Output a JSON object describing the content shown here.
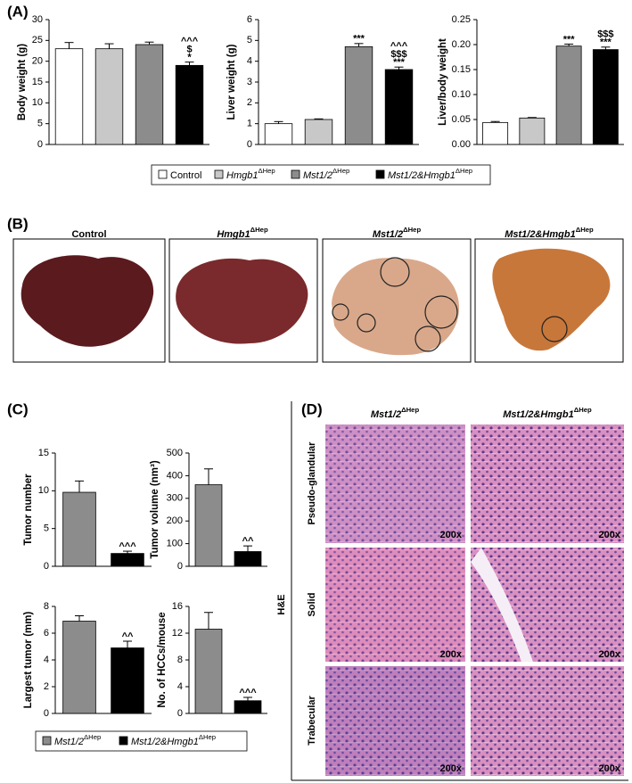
{
  "panel_labels": [
    "(A)",
    "(B)",
    "(C)",
    "(D)"
  ],
  "legend_a": [
    {
      "name": "Control",
      "sup": null,
      "color": "#ffffff"
    },
    {
      "name": "Hmgb1",
      "sup": "ΔHep",
      "color": "#c8c8c8"
    },
    {
      "name": "Mst1/2",
      "sup": "ΔHep",
      "color": "#8c8c8c"
    },
    {
      "name": "Mst1/2&Hmgb1",
      "sup": "ΔHep",
      "color": "#000000"
    }
  ],
  "legend_c": [
    {
      "name": "Mst1/2",
      "sup": "ΔHep",
      "color": "#8c8c8c"
    },
    {
      "name": "Mst1/2&Hmgb1",
      "sup": "ΔHep",
      "color": "#000000"
    }
  ],
  "photos": [
    {
      "name": "Control",
      "sup": null
    },
    {
      "name": "Hmgb1",
      "sup": "ΔHep"
    },
    {
      "name": "Mst1/2",
      "sup": "ΔHep"
    },
    {
      "name": "Mst1/2&Hmgb1",
      "sup": "ΔHep"
    }
  ],
  "histology": {
    "columns": [
      {
        "name": "Mst1/2",
        "sup": "ΔHep"
      },
      {
        "name": "Mst1/2&Hmgb1",
        "sup": "ΔHep"
      }
    ],
    "rows": [
      "Pseudo-glandular",
      "Solid",
      "Trabecular"
    ],
    "stain": "H&E",
    "magnifications": [
      [
        "200x",
        "200x"
      ],
      [
        "200x",
        "200x"
      ],
      [
        "200x",
        "200x"
      ]
    ]
  },
  "chart_data": [
    {
      "type": "bar",
      "ylabel": "Body weight (g)",
      "values": [
        23,
        23,
        24,
        19
      ],
      "errors": [
        1.5,
        1.2,
        0.6,
        0.8
      ],
      "colors": [
        "#ffffff",
        "#c8c8c8",
        "#8c8c8c",
        "#000000"
      ],
      "ylim": [
        0,
        30
      ],
      "yticks": [
        0,
        5,
        10,
        15,
        20,
        25,
        30
      ],
      "annotations": [
        null,
        null,
        null,
        [
          "^^^",
          "$",
          "*"
        ]
      ]
    },
    {
      "type": "bar",
      "ylabel": "Liver weight (g)",
      "values": [
        1.0,
        1.2,
        4.7,
        3.6
      ],
      "errors": [
        0.1,
        0.03,
        0.15,
        0.12
      ],
      "colors": [
        "#ffffff",
        "#c8c8c8",
        "#8c8c8c",
        "#000000"
      ],
      "ylim": [
        0,
        6
      ],
      "yticks": [
        0,
        1,
        2,
        3,
        4,
        5,
        6
      ],
      "annotations": [
        null,
        null,
        [
          "***"
        ],
        [
          "^^^",
          "$$$",
          "***"
        ]
      ]
    },
    {
      "type": "bar",
      "ylabel": "Liver/body weight",
      "values": [
        0.044,
        0.053,
        0.197,
        0.19
      ],
      "errors": [
        0.002,
        0.001,
        0.004,
        0.005
      ],
      "colors": [
        "#ffffff",
        "#c8c8c8",
        "#8c8c8c",
        "#000000"
      ],
      "ylim": [
        0,
        0.25
      ],
      "yticks": [
        {
          "value": 0,
          "label": "0.00"
        },
        0.05,
        {
          "value": 0.1,
          "label": "0.10"
        },
        0.15,
        {
          "value": 0.2,
          "label": "0.20"
        },
        0.25
      ],
      "annotations": [
        null,
        null,
        [
          "***"
        ],
        [
          "$$$",
          "***"
        ]
      ]
    },
    {
      "type": "bar",
      "ylabel": "Tumor number",
      "values": [
        9.8,
        1.7
      ],
      "errors": [
        1.5,
        0.3
      ],
      "colors": [
        "#8c8c8c",
        "#000000"
      ],
      "ylim": [
        0,
        15
      ],
      "yticks": [
        0,
        5,
        10,
        15
      ],
      "annotations": [
        null,
        [
          "^^^"
        ]
      ]
    },
    {
      "type": "bar",
      "ylabel": "Tumor volume (nm³)",
      "values": [
        360,
        65
      ],
      "errors": [
        70,
        25
      ],
      "colors": [
        "#8c8c8c",
        "#000000"
      ],
      "ylim": [
        0,
        500
      ],
      "yticks": [
        0,
        100,
        200,
        300,
        400,
        500
      ],
      "annotations": [
        null,
        [
          "^^"
        ]
      ]
    },
    {
      "type": "bar",
      "ylabel": "Largest tumor (mm)",
      "values": [
        6.9,
        4.9
      ],
      "errors": [
        0.4,
        0.5
      ],
      "colors": [
        "#8c8c8c",
        "#000000"
      ],
      "ylim": [
        0,
        8
      ],
      "yticks": [
        0,
        2,
        4,
        6,
        8
      ],
      "annotations": [
        null,
        [
          "^^"
        ]
      ]
    },
    {
      "type": "bar",
      "ylabel": "No. of HCCs/mouse",
      "values": [
        12.6,
        1.9
      ],
      "errors": [
        2.5,
        0.5
      ],
      "colors": [
        "#8c8c8c",
        "#000000"
      ],
      "ylim": [
        0,
        16
      ],
      "yticks": [
        0,
        4,
        8,
        12,
        16
      ],
      "annotations": [
        null,
        [
          "^^^"
        ]
      ]
    }
  ]
}
